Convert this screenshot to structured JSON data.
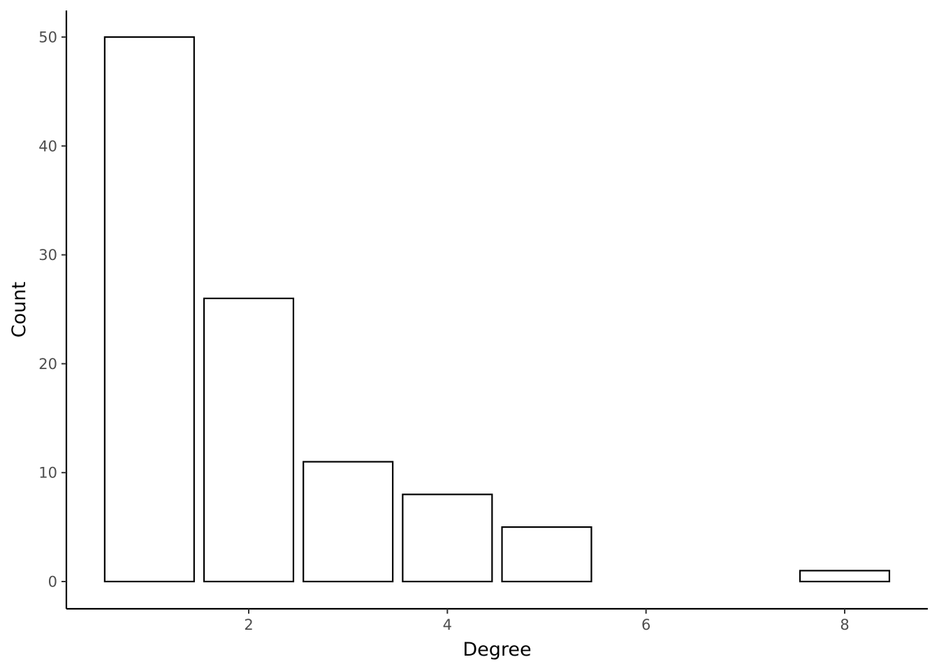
{
  "chart_data": {
    "type": "bar",
    "title": "",
    "xlabel": "Degree",
    "ylabel": "Count",
    "x": [
      1,
      2,
      3,
      4,
      5,
      8
    ],
    "values": [
      50,
      26,
      11,
      8,
      5,
      1
    ],
    "xlim": [
      0.6,
      8.4
    ],
    "ylim": [
      0,
      52.5
    ],
    "x_ticks": [
      2,
      4,
      6,
      8
    ],
    "y_ticks": [
      0,
      10,
      20,
      30,
      40,
      50
    ],
    "bar_width": 0.9,
    "bar_fill": "#ffffff",
    "bar_stroke": "#000000",
    "grid": false,
    "legend": "none"
  }
}
